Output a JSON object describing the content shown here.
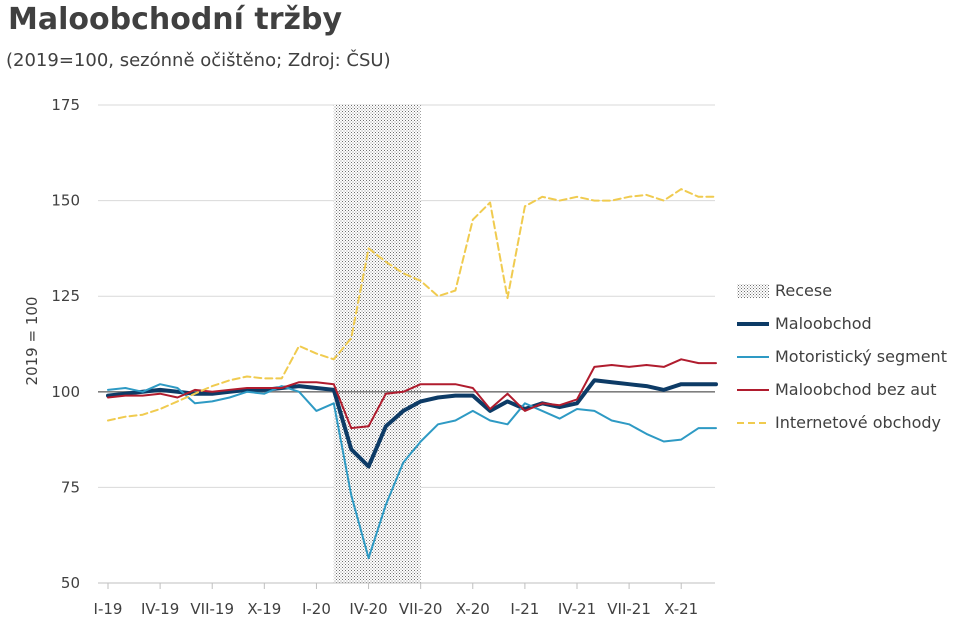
{
  "title": "Maloobchodní tržby",
  "subtitle": "(2019=100, sezónně očištěno; Zdroj: ČSU)",
  "chart_data": {
    "type": "line",
    "ylabel": "2019 = 100",
    "ylim": [
      50,
      175
    ],
    "yticks": [
      50,
      75,
      100,
      125,
      150,
      175
    ],
    "grid": "horizontal",
    "legend_position": "right",
    "reference_line": 100,
    "x_months": [
      "I-19",
      "II-19",
      "III-19",
      "IV-19",
      "V-19",
      "VI-19",
      "VII-19",
      "VIII-19",
      "IX-19",
      "X-19",
      "XI-19",
      "XII-19",
      "I-20",
      "II-20",
      "III-20",
      "IV-20",
      "V-20",
      "VI-20",
      "VII-20",
      "VIII-20",
      "IX-20",
      "X-20",
      "XI-20",
      "XII-20",
      "I-21",
      "II-21",
      "III-21",
      "IV-21",
      "V-21",
      "VI-21",
      "VII-21",
      "VIII-21",
      "IX-21",
      "X-21",
      "XI-21",
      "XII-21"
    ],
    "tick_labels": [
      "I-19",
      "IV-19",
      "VII-19",
      "X-19",
      "I-20",
      "IV-20",
      "VII-20",
      "X-20",
      "I-21",
      "IV-21",
      "VII-21",
      "X-21"
    ],
    "shaded_region": {
      "name": "Recese",
      "from": "II-20",
      "to": "VII-20"
    },
    "series": [
      {
        "name": "Recese",
        "style": "dotted-area",
        "color": "#7f7f7f"
      },
      {
        "name": "Maloobchod",
        "color": "#0d3b66",
        "width": 4,
        "dash": false,
        "values": [
          99,
          99.5,
          100,
          100.5,
          100,
          99.5,
          99.5,
          100,
          100.5,
          100.5,
          101,
          101.5,
          101,
          100.5,
          85,
          80.5,
          91,
          95,
          97.5,
          98.5,
          99,
          99,
          95,
          97.5,
          95.5,
          97,
          96,
          97,
          103,
          102.5,
          102,
          101.5,
          100.5,
          102,
          102,
          102
        ]
      },
      {
        "name": "Motoristický segment",
        "color": "#2e9ac4",
        "width": 2,
        "dash": false,
        "values": [
          100.5,
          101,
          100,
          102,
          101,
          97,
          97.5,
          98.5,
          100,
          99.5,
          101.5,
          100,
          95,
          97,
          73,
          56.5,
          70.5,
          81.5,
          87,
          91.5,
          92.5,
          95,
          92.5,
          91.5,
          97,
          95,
          93,
          95.5,
          95,
          92.5,
          91.5,
          89,
          87,
          87.5,
          90.5,
          90.5
        ]
      },
      {
        "name": "Maloobchod bez aut",
        "color": "#b01c2e",
        "width": 2,
        "dash": false,
        "values": [
          98.5,
          99,
          99,
          99.5,
          98.5,
          100.5,
          100,
          100.5,
          101,
          101,
          101,
          102.5,
          102.5,
          102,
          90.5,
          91,
          99.5,
          100,
          102,
          102,
          102,
          101,
          95.5,
          99.5,
          95,
          97,
          96.5,
          98,
          106.5,
          107,
          106.5,
          107,
          106.5,
          108.5,
          107.5,
          107.5
        ]
      },
      {
        "name": "Internetové obchody",
        "color": "#f0cb4f",
        "width": 2,
        "dash": true,
        "values": [
          92.5,
          93.5,
          94,
          95.5,
          97.5,
          99.5,
          101.5,
          103,
          104,
          103.5,
          103.5,
          112,
          110,
          108.5,
          114,
          137.5,
          134,
          131,
          129,
          125,
          126.5,
          145,
          149.5,
          124.5,
          148.5,
          151,
          150,
          151,
          150,
          150,
          151,
          151.5,
          150,
          153,
          151,
          151
        ]
      }
    ]
  }
}
